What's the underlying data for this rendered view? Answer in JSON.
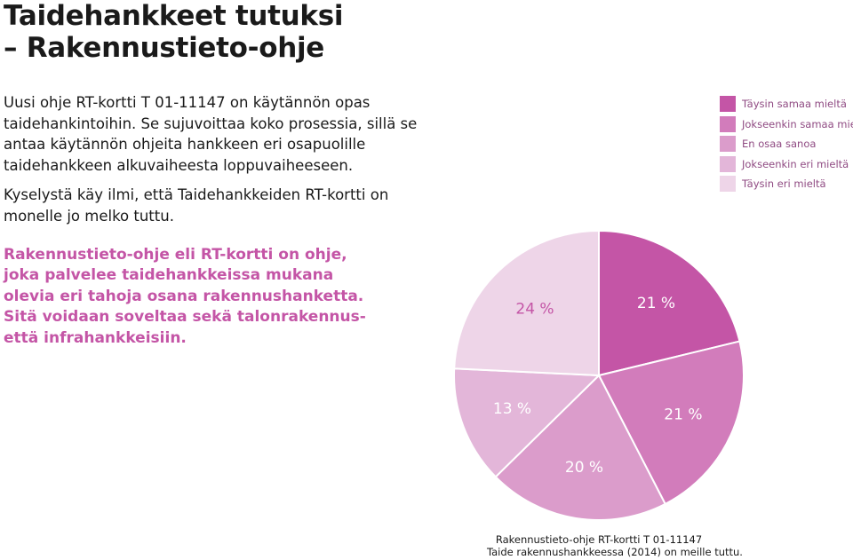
{
  "title": {
    "line1": "Taidehankkeet tutuksi",
    "line2": "– Rakennustieto-ohje"
  },
  "intro": {
    "paragraph1": "Uusi ohje RT-kortti T 01-11147 on käytännön opas taidehankintoihin. Se sujuvoittaa koko prosessia, sillä se antaa käytännön ohjeita hankkeen eri osapuolille taidehankkeen alkuvaiheesta loppuvaiheeseen.",
    "paragraph2": "Kyselystä käy ilmi, että Taidehankkeiden RT-kortti on monelle jo melko tuttu."
  },
  "highlight": {
    "lines": [
      "Rakennustieto-ohje eli RT-kortti on ohje,",
      "joka palvelee taidehankkeissa mukana",
      "olevia eri tahoja osana rakennushanketta.",
      "Sitä voidaan soveltaa sekä talonrakennus-",
      "että infrahankkeisiin."
    ]
  },
  "chart_data": {
    "type": "pie",
    "title": "",
    "series": [
      {
        "name": "Täysin samaa mieltä",
        "value": 21,
        "label": "21 %",
        "color": "#c455a6"
      },
      {
        "name": "Jokseenkin samaa mieltä",
        "value": 21,
        "label": "21 %",
        "color": "#d27cbb"
      },
      {
        "name": "En osaa sanoa",
        "value": 20,
        "label": "20 %",
        "color": "#db9ccb"
      },
      {
        "name": "Jokseenkin eri mieltä",
        "value": 13,
        "label": "13 %",
        "color": "#e3b6d9"
      },
      {
        "name": "Täysin eri mieltä",
        "value": 24,
        "label": "24 %",
        "color": "#eed5e8"
      }
    ],
    "legend_position": "top-right",
    "label_color": "#ffffff",
    "label_color_light": "#c455a6"
  },
  "caption": {
    "line1": "Rakennustieto-ohje RT-kortti T 01-11147",
    "line2": "Taide rakennushankkeessa (2014) on meille tuttu."
  },
  "colors": {
    "accent": "#c455a6",
    "legend_text": "#8f4a82"
  }
}
